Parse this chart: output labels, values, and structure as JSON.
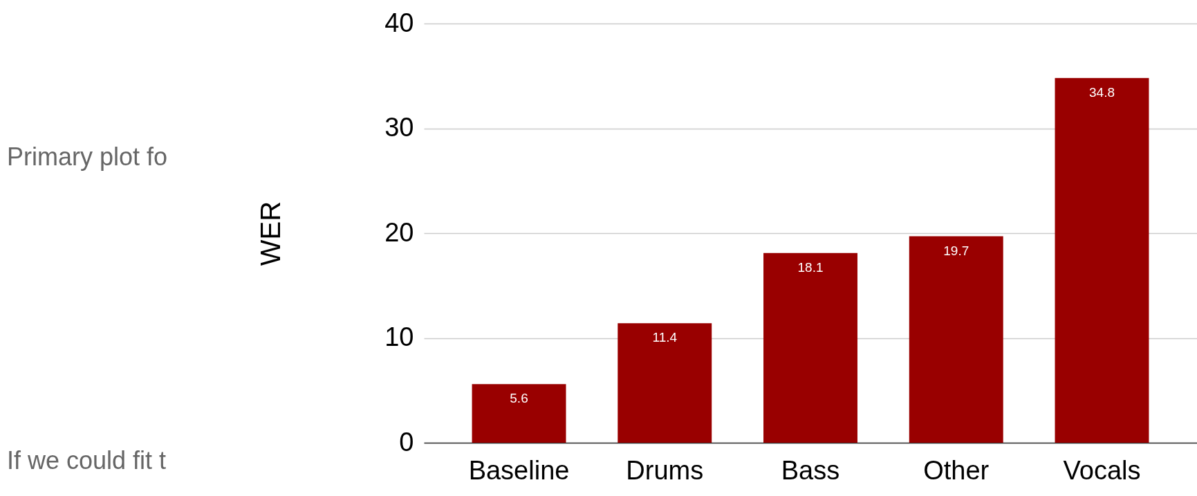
{
  "chart_data": {
    "type": "bar",
    "ylabel": "WER",
    "categories": [
      "Baseline",
      "Drums",
      "Bass",
      "Other",
      "Vocals"
    ],
    "values": [
      5.6,
      11.4,
      18.1,
      19.7,
      34.8
    ],
    "color": "#990000",
    "ylim": [
      0,
      40
    ],
    "yticks": [
      0,
      10,
      20,
      30,
      40
    ],
    "grid": "y",
    "data_labels": true,
    "annotations": [
      "Primary plot fo",
      "If we could fit t"
    ]
  }
}
